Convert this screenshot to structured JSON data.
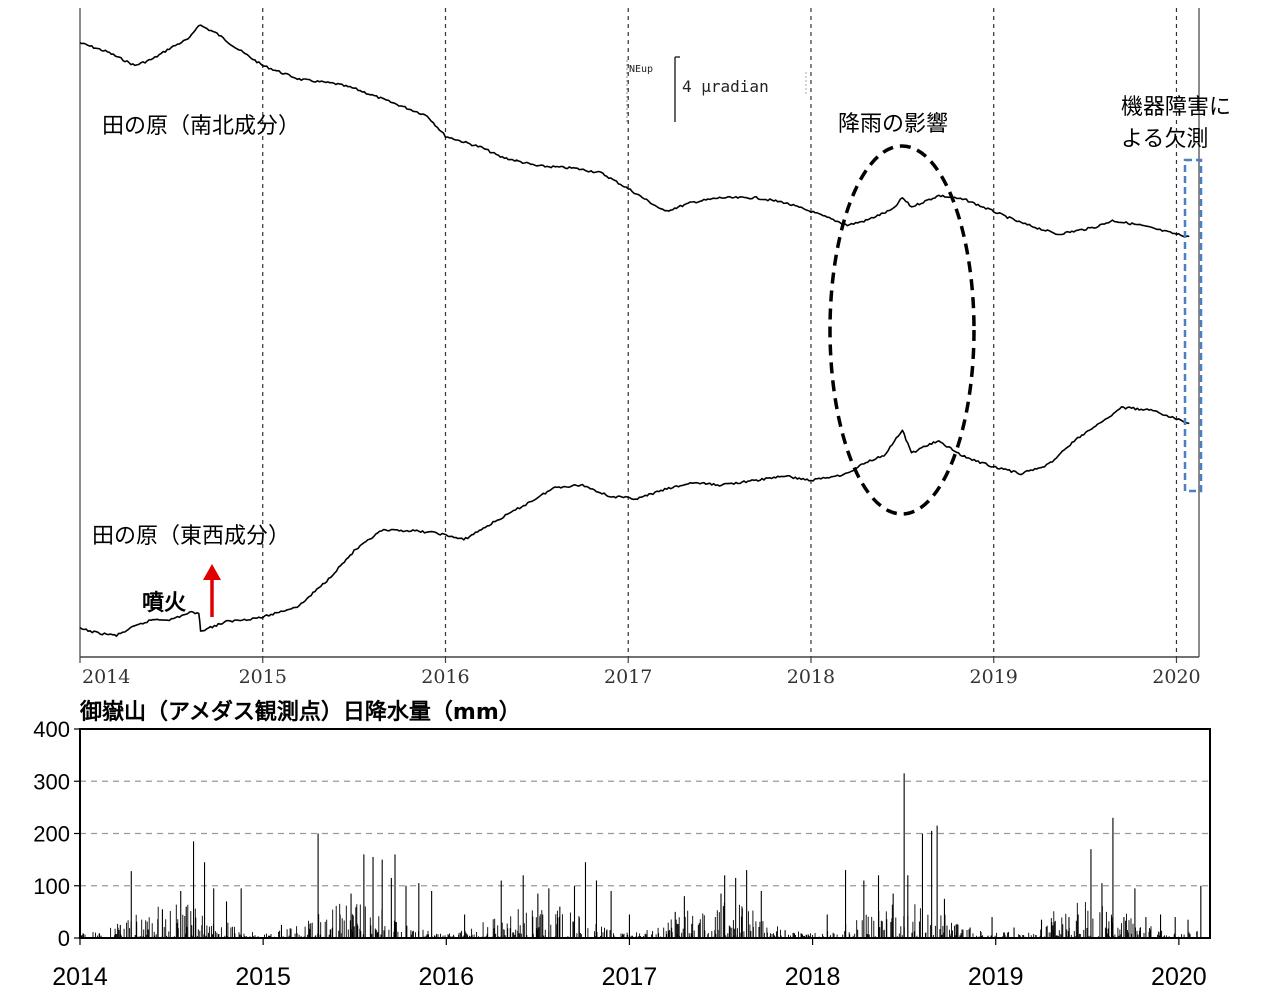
{
  "tilt_chart": {
    "type": "line",
    "x_ticks": [
      "2014",
      "2015",
      "2016",
      "2017",
      "2018",
      "2019",
      "2020"
    ],
    "xlim": [
      "2014-01-01",
      "2020-02-15"
    ],
    "scale_label_small": "NEup",
    "scale_label": "4 μradian",
    "series": [
      {
        "name": "田の原（南北成分）",
        "points": [
          [
            2014.0,
            3.0
          ],
          [
            2014.15,
            2.6
          ],
          [
            2014.3,
            2.0
          ],
          [
            2014.4,
            2.3
          ],
          [
            2014.5,
            2.8
          ],
          [
            2014.6,
            3.2
          ],
          [
            2014.65,
            3.8
          ],
          [
            2014.75,
            3.4
          ],
          [
            2014.85,
            2.8
          ],
          [
            2015.0,
            2.0
          ],
          [
            2015.2,
            1.4
          ],
          [
            2015.4,
            1.2
          ],
          [
            2015.5,
            1.0
          ],
          [
            2015.7,
            0.4
          ],
          [
            2015.9,
            -0.2
          ],
          [
            2016.0,
            -1.1
          ],
          [
            2016.2,
            -1.6
          ],
          [
            2016.3,
            -2.0
          ],
          [
            2016.5,
            -2.4
          ],
          [
            2016.7,
            -2.5
          ],
          [
            2016.85,
            -2.7
          ],
          [
            2017.0,
            -3.4
          ],
          [
            2017.2,
            -4.4
          ],
          [
            2017.35,
            -4.0
          ],
          [
            2017.5,
            -3.8
          ],
          [
            2017.7,
            -3.8
          ],
          [
            2017.85,
            -4.0
          ],
          [
            2018.0,
            -4.4
          ],
          [
            2018.2,
            -5.0
          ],
          [
            2018.3,
            -4.8
          ],
          [
            2018.45,
            -4.3
          ],
          [
            2018.5,
            -3.8
          ],
          [
            2018.55,
            -4.2
          ],
          [
            2018.7,
            -3.7
          ],
          [
            2018.85,
            -3.9
          ],
          [
            2019.0,
            -4.4
          ],
          [
            2019.15,
            -4.9
          ],
          [
            2019.35,
            -5.4
          ],
          [
            2019.55,
            -5.1
          ],
          [
            2019.65,
            -4.8
          ],
          [
            2019.8,
            -5.0
          ],
          [
            2020.0,
            -5.4
          ],
          [
            2020.07,
            -5.5
          ]
        ]
      },
      {
        "name": "田の原（東西成分）",
        "points": [
          [
            2014.0,
            -22.7
          ],
          [
            2014.1,
            -22.9
          ],
          [
            2014.2,
            -23.0
          ],
          [
            2014.3,
            -22.6
          ],
          [
            2014.4,
            -22.3
          ],
          [
            2014.5,
            -22.3
          ],
          [
            2014.6,
            -22.0
          ],
          [
            2014.65,
            -22.0
          ],
          [
            2014.66,
            -22.8
          ],
          [
            2014.8,
            -22.4
          ],
          [
            2015.0,
            -22.2
          ],
          [
            2015.2,
            -21.7
          ],
          [
            2015.35,
            -20.6
          ],
          [
            2015.5,
            -19.3
          ],
          [
            2015.65,
            -18.4
          ],
          [
            2015.8,
            -18.4
          ],
          [
            2015.95,
            -18.5
          ],
          [
            2016.1,
            -18.8
          ],
          [
            2016.25,
            -18.1
          ],
          [
            2016.45,
            -17.2
          ],
          [
            2016.6,
            -16.5
          ],
          [
            2016.75,
            -16.4
          ],
          [
            2016.9,
            -16.9
          ],
          [
            2017.05,
            -17.0
          ],
          [
            2017.2,
            -16.6
          ],
          [
            2017.35,
            -16.3
          ],
          [
            2017.5,
            -16.4
          ],
          [
            2017.7,
            -16.2
          ],
          [
            2017.85,
            -16.0
          ],
          [
            2018.0,
            -16.2
          ],
          [
            2018.2,
            -15.9
          ],
          [
            2018.3,
            -15.4
          ],
          [
            2018.4,
            -15.1
          ],
          [
            2018.5,
            -14.0
          ],
          [
            2018.55,
            -15.0
          ],
          [
            2018.65,
            -14.6
          ],
          [
            2018.7,
            -14.5
          ],
          [
            2018.85,
            -15.2
          ],
          [
            2019.0,
            -15.6
          ],
          [
            2019.15,
            -15.9
          ],
          [
            2019.3,
            -15.5
          ],
          [
            2019.45,
            -14.4
          ],
          [
            2019.6,
            -13.6
          ],
          [
            2019.7,
            -13.0
          ],
          [
            2019.85,
            -13.1
          ],
          [
            2020.0,
            -13.5
          ],
          [
            2020.07,
            -13.7
          ]
        ]
      }
    ],
    "annotations": {
      "rain_effect": "降雨の影響",
      "missing_line1": "機器障害に",
      "missing_line2": "よる欠測",
      "eruption": "噴火"
    },
    "eruption_date": 2014.66,
    "missing_range": [
      2020.07,
      2020.15
    ],
    "rain_effect_range": [
      2018.1,
      2018.95
    ]
  },
  "rain_chart": {
    "type": "bar",
    "title": "御嶽山（アメダス観測点）日降水量（mm）",
    "x_ticks": [
      "2014",
      "2015",
      "2016",
      "2017",
      "2018",
      "2019",
      "2020"
    ],
    "y_ticks": [
      "400",
      "300",
      "200",
      "100",
      "0"
    ],
    "ylim": [
      0,
      400
    ],
    "grid": "horizontal dashed",
    "peaks": [
      [
        2014.22,
        25
      ],
      [
        2014.28,
        128
      ],
      [
        2014.45,
        55
      ],
      [
        2014.55,
        90
      ],
      [
        2014.58,
        60
      ],
      [
        2014.62,
        185
      ],
      [
        2014.68,
        145
      ],
      [
        2014.73,
        95
      ],
      [
        2014.8,
        70
      ],
      [
        2014.88,
        95
      ],
      [
        2015.1,
        25
      ],
      [
        2015.3,
        200
      ],
      [
        2015.42,
        45
      ],
      [
        2015.48,
        85
      ],
      [
        2015.55,
        160
      ],
      [
        2015.6,
        155
      ],
      [
        2015.65,
        150
      ],
      [
        2015.7,
        115
      ],
      [
        2015.72,
        160
      ],
      [
        2015.78,
        100
      ],
      [
        2015.85,
        105
      ],
      [
        2015.92,
        90
      ],
      [
        2016.1,
        45
      ],
      [
        2016.3,
        110
      ],
      [
        2016.42,
        120
      ],
      [
        2016.5,
        85
      ],
      [
        2016.56,
        95
      ],
      [
        2016.62,
        60
      ],
      [
        2016.7,
        100
      ],
      [
        2016.76,
        145
      ],
      [
        2016.82,
        110
      ],
      [
        2016.9,
        90
      ],
      [
        2017.0,
        45
      ],
      [
        2017.25,
        50
      ],
      [
        2017.3,
        80
      ],
      [
        2017.5,
        85
      ],
      [
        2017.52,
        120
      ],
      [
        2017.58,
        115
      ],
      [
        2017.64,
        130
      ],
      [
        2017.72,
        90
      ],
      [
        2017.85,
        15
      ],
      [
        2018.08,
        45
      ],
      [
        2018.18,
        130
      ],
      [
        2018.28,
        110
      ],
      [
        2018.36,
        120
      ],
      [
        2018.44,
        85
      ],
      [
        2018.5,
        315
      ],
      [
        2018.52,
        120
      ],
      [
        2018.6,
        200
      ],
      [
        2018.65,
        205
      ],
      [
        2018.68,
        215
      ],
      [
        2018.72,
        75
      ],
      [
        2018.86,
        20
      ],
      [
        2018.98,
        40
      ],
      [
        2019.1,
        20
      ],
      [
        2019.25,
        35
      ],
      [
        2019.4,
        40
      ],
      [
        2019.45,
        45
      ],
      [
        2019.52,
        170
      ],
      [
        2019.58,
        105
      ],
      [
        2019.64,
        230
      ],
      [
        2019.7,
        40
      ],
      [
        2019.76,
        95
      ],
      [
        2019.82,
        40
      ],
      [
        2019.9,
        45
      ],
      [
        2019.98,
        40
      ],
      [
        2020.05,
        35
      ],
      [
        2020.12,
        100
      ]
    ]
  }
}
